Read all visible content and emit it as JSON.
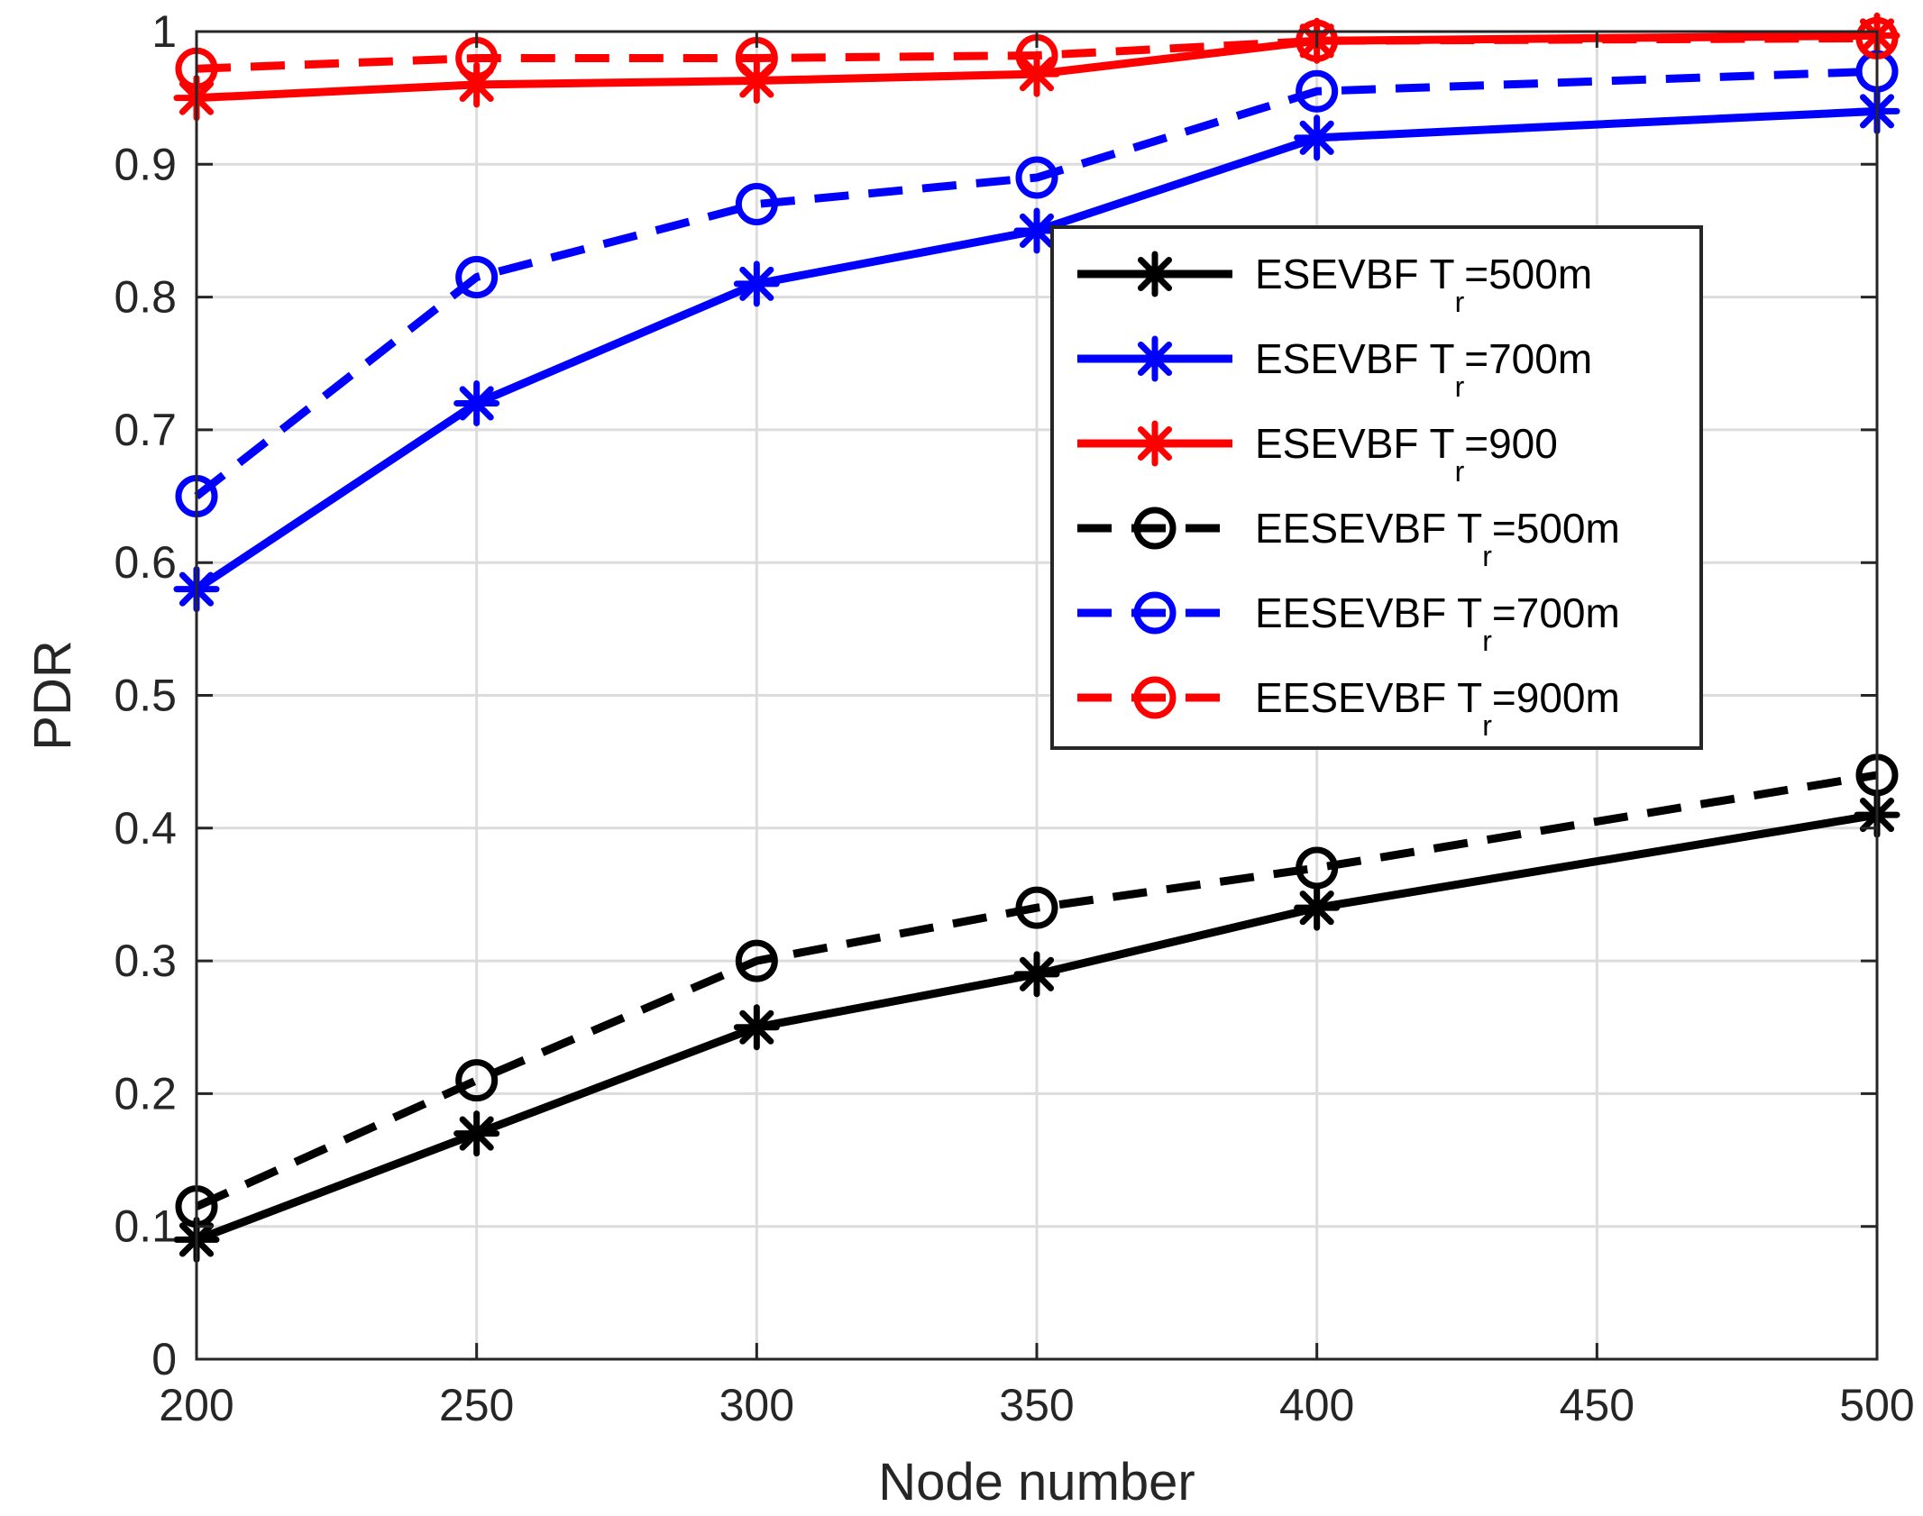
{
  "chart_data": {
    "type": "line",
    "title": "",
    "xlabel": "Node number",
    "ylabel": "PDR",
    "xlim": [
      200,
      500
    ],
    "ylim": [
      0,
      1
    ],
    "xticks": [
      200,
      250,
      300,
      350,
      400,
      450,
      500
    ],
    "yticks": [
      0,
      0.1,
      0.2,
      0.3,
      0.4,
      0.5,
      0.6,
      0.7,
      0.8,
      0.9,
      1
    ],
    "ytick_labels": [
      "0",
      "0.1",
      "0.2",
      "0.3",
      "0.4",
      "0.5",
      "0.6",
      "0.7",
      "0.8",
      "0.9",
      "1"
    ],
    "grid": true,
    "legend_position": "top-right (inside)",
    "series": [
      {
        "name": "ESEVBF T_r=500m",
        "label_main": "ESEVBF T",
        "label_sub": "r",
        "label_tail": "=500m",
        "color": "#000000",
        "line": "solid",
        "marker": "asterisk",
        "x": [
          200,
          250,
          300,
          350,
          400,
          500
        ],
        "values": [
          0.09,
          0.17,
          0.25,
          0.29,
          0.34,
          0.41
        ]
      },
      {
        "name": "ESEVBF T_r=700m",
        "label_main": "ESEVBF T",
        "label_sub": "r",
        "label_tail": "=700m",
        "color": "#0000ff",
        "line": "solid",
        "marker": "asterisk",
        "x": [
          200,
          250,
          300,
          350,
          400,
          500
        ],
        "values": [
          0.58,
          0.72,
          0.81,
          0.85,
          0.92,
          0.94
        ]
      },
      {
        "name": "ESEVBF T_r=900",
        "label_main": "ESEVBF T",
        "label_sub": "r",
        "label_tail": "=900",
        "color": "#ff0000",
        "line": "solid",
        "marker": "asterisk",
        "x": [
          200,
          250,
          300,
          350,
          400,
          500
        ],
        "values": [
          0.95,
          0.96,
          0.963,
          0.968,
          0.993,
          0.997
        ]
      },
      {
        "name": "EESEVBF T_r=500m",
        "label_main": "EESEVBF T",
        "label_sub": "r",
        "label_tail": "=500m",
        "color": "#000000",
        "line": "dashed",
        "marker": "circle",
        "x": [
          200,
          250,
          300,
          350,
          400,
          500
        ],
        "values": [
          0.115,
          0.21,
          0.3,
          0.34,
          0.37,
          0.44
        ]
      },
      {
        "name": "EESEVBF  T_r=700m",
        "label_main": "EESEVBF  T",
        "label_sub": "r",
        "label_tail": "=700m",
        "color": "#0000ff",
        "line": "dashed",
        "marker": "circle",
        "x": [
          200,
          250,
          300,
          350,
          400,
          500
        ],
        "values": [
          0.65,
          0.815,
          0.87,
          0.89,
          0.955,
          0.97
        ]
      },
      {
        "name": "EESEVBF  T_r=900m",
        "label_main": "EESEVBF  T",
        "label_sub": "r",
        "label_tail": "=900m",
        "color": "#ff0000",
        "line": "dashed",
        "marker": "circle",
        "x": [
          200,
          250,
          300,
          350,
          400,
          500
        ],
        "values": [
          0.972,
          0.98,
          0.98,
          0.982,
          0.993,
          0.995
        ]
      }
    ]
  }
}
